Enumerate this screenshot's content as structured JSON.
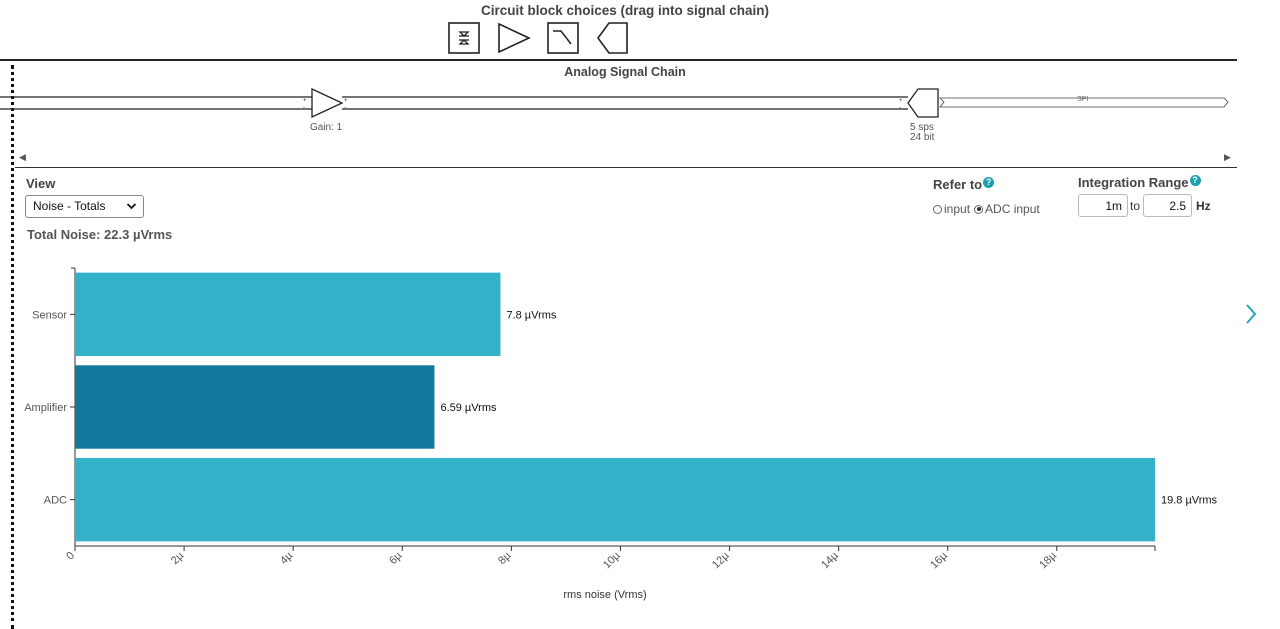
{
  "palette": {
    "title": "Circuit block choices (drag into signal chain)",
    "blocks": [
      "sensor-block-icon",
      "amplifier-block-icon",
      "filter-block-icon",
      "adc-block-icon"
    ]
  },
  "chain": {
    "title": "Analog Signal Chain",
    "gain_label": "Gain: 1",
    "adc_rate": "5 sps",
    "adc_bits": "24 bit",
    "bus_label": "SPI"
  },
  "view": {
    "label": "View",
    "selected": "Noise - Totals",
    "total_noise": "Total Noise: 22.3 µVrms"
  },
  "refer": {
    "label": "Refer to",
    "options": [
      {
        "label": "input",
        "selected": false
      },
      {
        "label": "ADC input",
        "selected": true
      }
    ]
  },
  "integration": {
    "label": "Integration Range",
    "from": "1m",
    "to_label": "to",
    "to": "2.5",
    "unit": "Hz"
  },
  "colors": {
    "bar_light": "#33b1c9",
    "bar_dark": "#11789e",
    "accent": "#1a9fb0"
  },
  "chart_data": {
    "type": "bar",
    "orientation": "horizontal",
    "categories": [
      "Sensor",
      "Amplifier",
      "ADC"
    ],
    "values": [
      7.8e-06,
      6.59e-06,
      1.98e-05
    ],
    "value_labels": [
      "7.8 µVrms",
      "6.59 µVrms",
      "19.8 µVrms"
    ],
    "highlight_index": 1,
    "xlabel": "rms noise (Vrms)",
    "xlim": [
      0,
      1.98e-05
    ],
    "ticks": [
      0,
      2e-06,
      4e-06,
      6e-06,
      8e-06,
      1e-05,
      1.2e-05,
      1.4e-05,
      1.6e-05,
      1.8e-05
    ],
    "tick_labels": [
      "0",
      "2µ",
      "4µ",
      "6µ",
      "8µ",
      "10µ",
      "12µ",
      "14µ",
      "16µ",
      "18µ"
    ],
    "grid": false
  }
}
